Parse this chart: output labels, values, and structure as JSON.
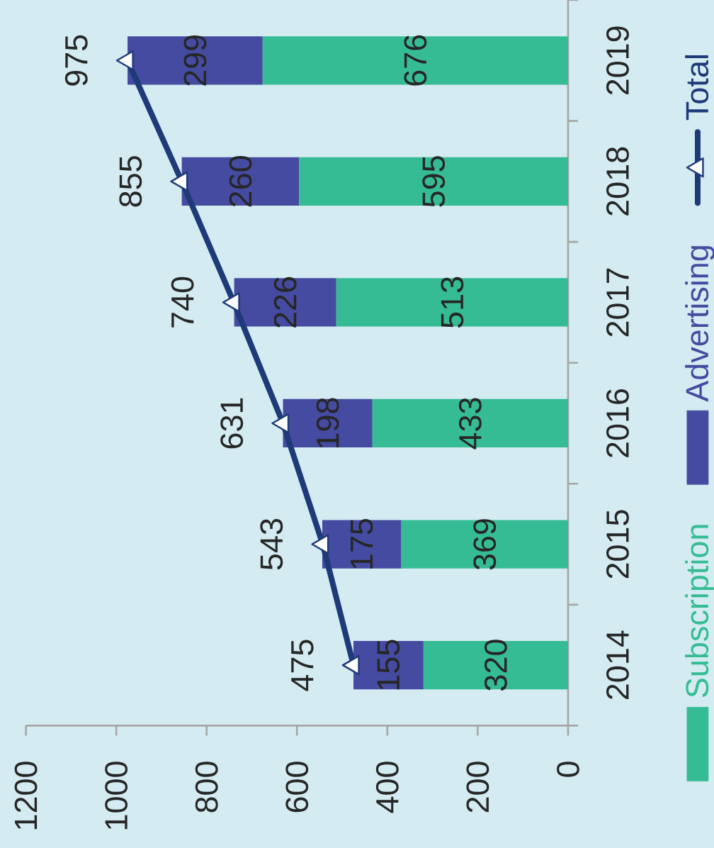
{
  "chart_data": {
    "type": "bar",
    "orientation": "horizontal",
    "stacked": true,
    "categories": [
      "2019",
      "2018",
      "2017",
      "2016",
      "2015",
      "2014"
    ],
    "series": [
      {
        "name": "Subscription",
        "color": "#36bc94",
        "values": [
          676,
          595,
          513,
          433,
          369,
          320
        ]
      },
      {
        "name": "Advertising",
        "color": "#444ba0",
        "values": [
          299,
          260,
          226,
          198,
          175,
          155
        ]
      },
      {
        "name": "Total",
        "type": "line",
        "color": "#1f3a78",
        "marker": "triangle",
        "values": [
          975,
          855,
          740,
          631,
          543,
          475
        ]
      }
    ],
    "xlim": [
      1200,
      0
    ],
    "xticks": [
      1200,
      1000,
      800,
      600,
      400,
      200,
      0
    ],
    "data_labels": true,
    "legend": "right"
  }
}
